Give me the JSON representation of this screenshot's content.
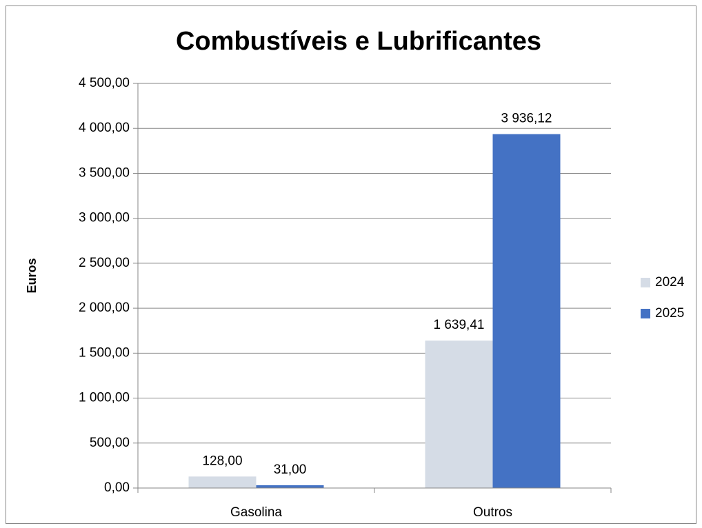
{
  "chart_data": {
    "type": "bar",
    "title": "Combustíveis e Lubrificantes",
    "y_label": "Euros",
    "categories": [
      "Gasolina",
      "Outros"
    ],
    "series": [
      {
        "name": "2024",
        "color": "#d5dce6",
        "values": [
          128,
          1639.41
        ],
        "value_labels": [
          "128,00",
          "1 639,41"
        ]
      },
      {
        "name": "2025",
        "color": "#4472c4",
        "values": [
          31,
          3936.12
        ],
        "value_labels": [
          "31,00",
          "3 936,12"
        ]
      }
    ],
    "ylim": [
      0,
      4500
    ],
    "yticks": [
      {
        "value": 0,
        "label": "0,00"
      },
      {
        "value": 500,
        "label": "500,00"
      },
      {
        "value": 1000,
        "label": "1 000,00"
      },
      {
        "value": 1500,
        "label": "1 500,00"
      },
      {
        "value": 2000,
        "label": "2 000,00"
      },
      {
        "value": 2500,
        "label": "2 500,00"
      },
      {
        "value": 3000,
        "label": "3 000,00"
      },
      {
        "value": 3500,
        "label": "3 500,00"
      },
      {
        "value": 4000,
        "label": "4 000,00"
      },
      {
        "value": 4500,
        "label": "4 500,00"
      }
    ],
    "grid": true,
    "legend": "right"
  }
}
